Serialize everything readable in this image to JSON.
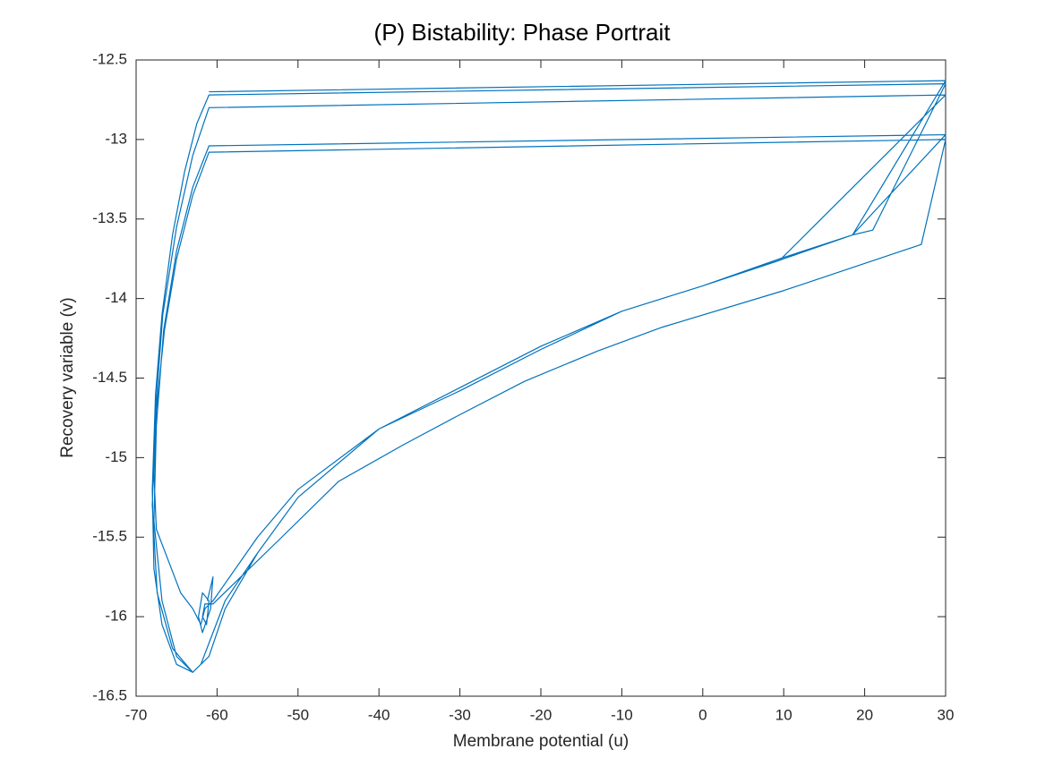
{
  "chart_data": {
    "type": "line",
    "title": "(P) Bistability: Phase Portrait",
    "x_label": "Membrane potential (u)",
    "y_label": "Recovery variable (v)",
    "x": [
      -61.2,
      -60.5,
      -60.8,
      -61.8,
      -62.3,
      -61.8,
      -61.0,
      -61.3,
      -61.8,
      -61.5,
      -60.5,
      -52,
      -45,
      -37,
      -30,
      -22,
      -13,
      -5,
      10,
      27,
      30,
      -61,
      -63,
      -65,
      -66.5,
      -67.5,
      -67.8,
      -67.5,
      -66,
      -64.5,
      -63,
      -62,
      -61.5,
      -60.5,
      -55,
      -50,
      -40,
      -30,
      -20,
      -10,
      0,
      9.5,
      18.5,
      21,
      30,
      -61,
      -62.5,
      -64,
      -65.5,
      -66.8,
      -67.6,
      -68,
      -67.8,
      -66.8,
      -65,
      -63,
      -62,
      -60.5,
      -59,
      -55,
      -50,
      -40,
      -30,
      -20,
      -10,
      0,
      10,
      18.5,
      30,
      -61,
      -63,
      -65,
      -66.6,
      -67.5,
      -67.8,
      -66.8,
      -65,
      -63,
      -61,
      -59,
      -55,
      -50,
      -40,
      -30,
      -20,
      -10,
      0,
      9.5,
      30,
      -61,
      -63,
      -65,
      -66.7,
      -67.6,
      -68,
      -67.4,
      -65.5,
      -63,
      -61,
      -59,
      -55,
      -50,
      -40,
      -30,
      -20,
      -10,
      0,
      10,
      18.5,
      30,
      -61
    ],
    "series": [
      {
        "color": "#0072bd",
        "values": [
          -15.9,
          -15.75,
          -15.95,
          -16.1,
          -16.0,
          -15.85,
          -15.9,
          -16.05,
          -16.0,
          -15.92,
          -15.92,
          -15.5,
          -15.15,
          -14.92,
          -14.73,
          -14.52,
          -14.33,
          -14.18,
          -13.95,
          -13.66,
          -13.0,
          -13.08,
          -13.35,
          -13.75,
          -14.2,
          -14.7,
          -15.1,
          -15.45,
          -15.65,
          -15.85,
          -15.95,
          -16.05,
          -15.95,
          -15.9,
          -15.5,
          -15.2,
          -14.82,
          -14.58,
          -14.32,
          -14.08,
          -13.92,
          -13.75,
          -13.6,
          -13.57,
          -12.65,
          -12.72,
          -12.9,
          -13.2,
          -13.6,
          -14.1,
          -14.6,
          -15.2,
          -15.7,
          -16.05,
          -16.3,
          -16.35,
          -16.3,
          -16.1,
          -15.9,
          -15.6,
          -15.25,
          -14.82,
          -14.56,
          -14.3,
          -14.08,
          -13.92,
          -13.75,
          -13.6,
          -12.97,
          -13.04,
          -13.3,
          -13.7,
          -14.2,
          -14.8,
          -15.4,
          -15.9,
          -16.25,
          -16.35,
          -16.25,
          -15.95,
          -15.6,
          -15.25,
          -14.82,
          -14.56,
          -14.3,
          -14.08,
          -13.92,
          -13.76,
          -12.72,
          -12.8,
          -13.1,
          -13.55,
          -14.1,
          -14.7,
          -15.3,
          -15.85,
          -16.2,
          -16.35,
          -16.25,
          -15.95,
          -15.6,
          -15.25,
          -14.82,
          -14.56,
          -14.3,
          -14.08,
          -13.92,
          -13.75,
          -13.6,
          -12.63,
          -12.7
        ]
      }
    ],
    "xlim": [
      -70,
      30
    ],
    "xticks": [
      -70,
      -60,
      -50,
      -40,
      -30,
      -20,
      -10,
      0,
      10,
      20,
      30
    ],
    "ylim": [
      -16.5,
      -12.5
    ],
    "yticks": [
      -16.5,
      -16,
      -15.5,
      -15,
      -14.5,
      -14,
      -13.5,
      -13,
      -12.5
    ]
  }
}
